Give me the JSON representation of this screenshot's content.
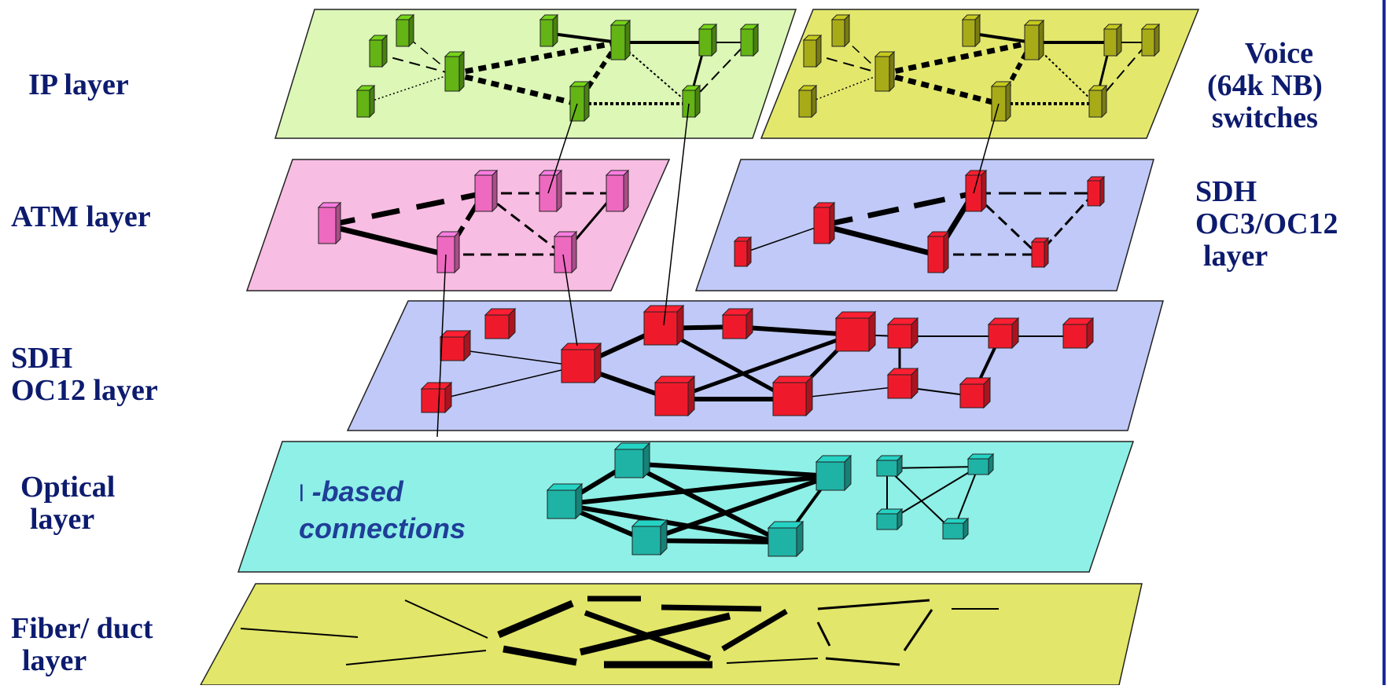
{
  "labels": {
    "ip": "IP layer",
    "atm": "ATM layer",
    "sdh_oc12": [
      "SDH",
      "OC12 layer"
    ],
    "optical": [
      "Optical",
      "layer"
    ],
    "fiber": [
      "Fiber/ duct",
      "layer"
    ],
    "voice": [
      "Voice",
      "(64k NB)",
      "switches"
    ],
    "sdh_oc3": [
      "SDH",
      "OC3/OC12",
      "layer"
    ]
  },
  "optical_note": {
    "symbol": "l",
    "line1": "-based",
    "line2": "connections"
  },
  "colors": {
    "ip_plane": "#dcf7b6",
    "ip_node": "#63b414",
    "voice_plane": "#e3e86d",
    "voice_node": "#a8ab18",
    "atm_plane": "#f8bde2",
    "atm_node": "#ee6ac0",
    "sdh_oc3_plane": "#c0c9f7",
    "sdh_oc12_plane": "#c0c9f7",
    "sdh_node": "#ee1a2b",
    "optical_plane": "#8ef0e6",
    "optical_node": "#1fb3a6",
    "fiber_plane": "#e2e66a",
    "text": "#0d1b6e"
  }
}
